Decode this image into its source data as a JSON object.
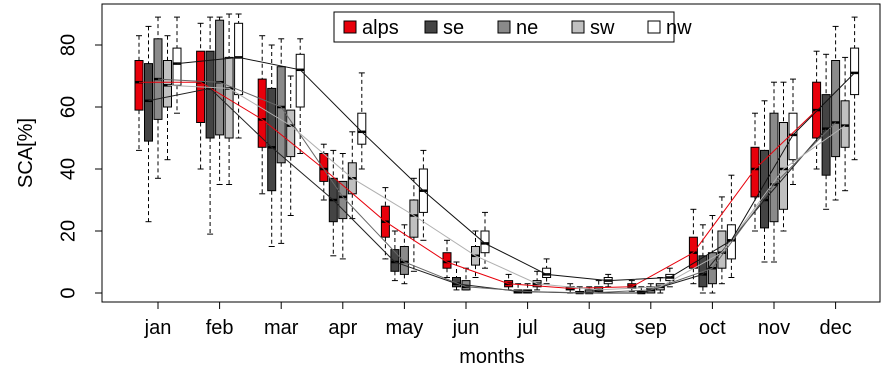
{
  "chart_data": {
    "type": "box",
    "title": "",
    "xlabel": "months",
    "ylabel": "SCA[%]",
    "ylim": [
      -3,
      92
    ],
    "yticks": [
      0,
      20,
      40,
      60,
      80
    ],
    "grid": false,
    "legend_position": "top-center",
    "categories": [
      "jan",
      "feb",
      "mar",
      "apr",
      "may",
      "jun",
      "jul",
      "aug",
      "sep",
      "oct",
      "nov",
      "dec"
    ],
    "series": [
      {
        "name": "alps",
        "color": "#e8000b",
        "boxes": [
          {
            "whislo": 46,
            "q1": 59,
            "med": 68,
            "q3": 75,
            "whishi": 83
          },
          {
            "whislo": 40,
            "q1": 55,
            "med": 68,
            "q3": 78,
            "whishi": 87
          },
          {
            "whislo": 32,
            "q1": 47,
            "med": 56,
            "q3": 69,
            "whishi": 83
          },
          {
            "whislo": 30,
            "q1": 36,
            "med": 40,
            "q3": 45,
            "whishi": 48
          },
          {
            "whislo": 11,
            "q1": 18,
            "med": 23,
            "q3": 28,
            "whishi": 34
          },
          {
            "whislo": 5,
            "q1": 8,
            "med": 10,
            "q3": 13,
            "whishi": 17
          },
          {
            "whislo": 1,
            "q1": 2,
            "med": 3,
            "q3": 4,
            "whishi": 6
          },
          {
            "whislo": 0,
            "q1": 1,
            "med": 1.5,
            "q3": 2,
            "whishi": 3
          },
          {
            "whislo": 0.5,
            "q1": 1.5,
            "med": 2,
            "q3": 3,
            "whishi": 4
          },
          {
            "whislo": 3,
            "q1": 8,
            "med": 13,
            "q3": 18,
            "whishi": 27
          },
          {
            "whislo": 20,
            "q1": 31,
            "med": 40,
            "q3": 47,
            "whishi": 58
          },
          {
            "whislo": 40,
            "q1": 50,
            "med": 59,
            "q3": 68,
            "whishi": 78
          }
        ]
      },
      {
        "name": "se",
        "color": "#444444",
        "boxes": [
          {
            "whislo": 23,
            "q1": 49,
            "med": 62,
            "q3": 74,
            "whishi": 86
          },
          {
            "whislo": 19,
            "q1": 50,
            "med": 66,
            "q3": 78,
            "whishi": 89
          },
          {
            "whislo": 15,
            "q1": 33,
            "med": 47,
            "q3": 66,
            "whishi": 80
          },
          {
            "whislo": 12,
            "q1": 23,
            "med": 30,
            "q3": 37,
            "whishi": 46
          },
          {
            "whislo": 4,
            "q1": 7,
            "med": 10,
            "q3": 14,
            "whishi": 20
          },
          {
            "whislo": 1,
            "q1": 2,
            "med": 3,
            "q3": 5,
            "whishi": 10
          },
          {
            "whislo": 0,
            "q1": 0,
            "med": 0.5,
            "q3": 1,
            "whishi": 3
          },
          {
            "whislo": 0,
            "q1": 0,
            "med": 0,
            "q3": 0.5,
            "whishi": 2
          },
          {
            "whislo": 0,
            "q1": 0,
            "med": 0,
            "q3": 0.5,
            "whishi": 2
          },
          {
            "whislo": 0,
            "q1": 2,
            "med": 6,
            "q3": 12,
            "whishi": 22
          },
          {
            "whislo": 10,
            "q1": 21,
            "med": 30,
            "q3": 46,
            "whishi": 62
          },
          {
            "whislo": 27,
            "q1": 38,
            "med": 53,
            "q3": 64,
            "whishi": 77
          }
        ]
      },
      {
        "name": "ne",
        "color": "#8a8a8a",
        "boxes": [
          {
            "whislo": 37,
            "q1": 56,
            "med": 69,
            "q3": 82,
            "whishi": 89
          },
          {
            "whislo": 35,
            "q1": 51,
            "med": 68,
            "q3": 88,
            "whishi": 89
          },
          {
            "whislo": 16,
            "q1": 42,
            "med": 60,
            "q3": 73,
            "whishi": 82
          },
          {
            "whislo": 11,
            "q1": 24,
            "med": 31,
            "q3": 36,
            "whishi": 45
          },
          {
            "whislo": 3,
            "q1": 6,
            "med": 10,
            "q3": 15,
            "whishi": 22
          },
          {
            "whislo": 1,
            "q1": 1,
            "med": 2,
            "q3": 4,
            "whishi": 8
          },
          {
            "whislo": 0,
            "q1": 0,
            "med": 0.5,
            "q3": 1,
            "whishi": 3
          },
          {
            "whislo": 0,
            "q1": 0,
            "med": 0,
            "q3": 1,
            "whishi": 2
          },
          {
            "whislo": 0,
            "q1": 0,
            "med": 1,
            "q3": 2,
            "whishi": 3
          },
          {
            "whislo": 0,
            "q1": 3,
            "med": 8,
            "q3": 13,
            "whishi": 25
          },
          {
            "whislo": 10,
            "q1": 23,
            "med": 35,
            "q3": 58,
            "whishi": 68
          },
          {
            "whislo": 30,
            "q1": 44,
            "med": 55,
            "q3": 75,
            "whishi": 86
          }
        ]
      },
      {
        "name": "sw",
        "color": "#c0c0c0",
        "boxes": [
          {
            "whislo": 43,
            "q1": 60,
            "med": 67,
            "q3": 75,
            "whishi": 83
          },
          {
            "whislo": 35,
            "q1": 50,
            "med": 66,
            "q3": 76,
            "whishi": 90
          },
          {
            "whislo": 25,
            "q1": 44,
            "med": 54,
            "q3": 59,
            "whishi": 70
          },
          {
            "whislo": 24,
            "q1": 32,
            "med": 37,
            "q3": 42,
            "whishi": 52
          },
          {
            "whislo": 7,
            "q1": 18,
            "med": 25,
            "q3": 30,
            "whishi": 37
          },
          {
            "whislo": 5,
            "q1": 9,
            "med": 12,
            "q3": 15,
            "whishi": 20
          },
          {
            "whislo": 1,
            "q1": 2,
            "med": 3,
            "q3": 4,
            "whishi": 7
          },
          {
            "whislo": 0,
            "q1": 0.5,
            "med": 1,
            "q3": 2,
            "whishi": 4
          },
          {
            "whislo": 0,
            "q1": 1,
            "med": 2,
            "q3": 3,
            "whishi": 5
          },
          {
            "whislo": 3,
            "q1": 8,
            "med": 13,
            "q3": 20,
            "whishi": 31
          },
          {
            "whislo": 20,
            "q1": 27,
            "med": 40,
            "q3": 55,
            "whishi": 68
          },
          {
            "whislo": 33,
            "q1": 47,
            "med": 54,
            "q3": 62,
            "whishi": 76
          }
        ]
      },
      {
        "name": "nw",
        "color": "#ffffff",
        "boxes": [
          {
            "whislo": 58,
            "q1": 67,
            "med": 74,
            "q3": 79,
            "whishi": 89
          },
          {
            "whislo": 50,
            "q1": 64,
            "med": 76,
            "q3": 87,
            "whishi": 90
          },
          {
            "whislo": 45,
            "q1": 60,
            "med": 72,
            "q3": 77,
            "whishi": 82
          },
          {
            "whislo": 40,
            "q1": 48,
            "med": 52,
            "q3": 58,
            "whishi": 71
          },
          {
            "whislo": 17,
            "q1": 26,
            "med": 33,
            "q3": 40,
            "whishi": 46
          },
          {
            "whislo": 8,
            "q1": 13,
            "med": 16,
            "q3": 20,
            "whishi": 26
          },
          {
            "whislo": 3,
            "q1": 5,
            "med": 6,
            "q3": 8,
            "whishi": 11
          },
          {
            "whislo": 2,
            "q1": 3,
            "med": 4,
            "q3": 5,
            "whishi": 6
          },
          {
            "whislo": 2,
            "q1": 4,
            "med": 5,
            "q3": 6,
            "whishi": 8
          },
          {
            "whislo": 5,
            "q1": 11,
            "med": 17,
            "q3": 22,
            "whishi": 38
          },
          {
            "whislo": 35,
            "q1": 43,
            "med": 51,
            "q3": 58,
            "whishi": 69
          },
          {
            "whislo": 43,
            "q1": 64,
            "med": 71,
            "q3": 79,
            "whishi": 89
          }
        ]
      }
    ]
  }
}
